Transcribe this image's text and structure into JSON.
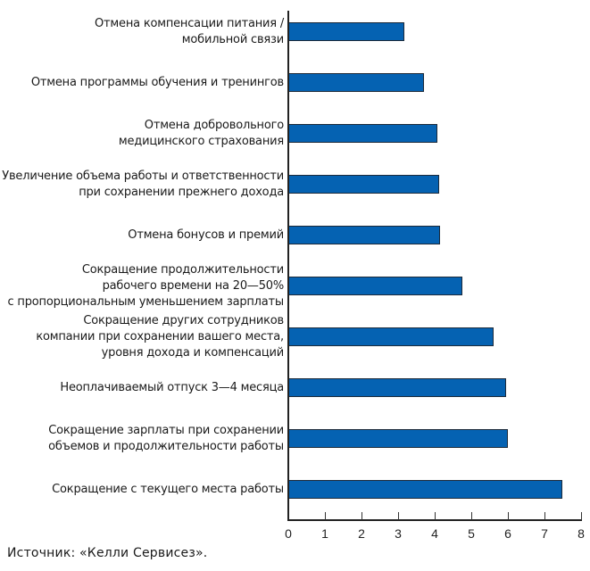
{
  "chart_data": {
    "type": "bar",
    "orientation": "horizontal",
    "title": "",
    "xlabel": "",
    "ylabel": "",
    "xlim": [
      0,
      8
    ],
    "x_ticks": [
      "0",
      "1",
      "2",
      "3",
      "4",
      "5",
      "6",
      "7",
      "8"
    ],
    "grid": false,
    "legend": null,
    "bar_color": "#0562b2",
    "categories": [
      "Отмена компенсации питания / мобильной связи",
      "Отмена программы обучения и тренингов",
      "Отмена добровольного медицинского страхования",
      "Увеличение объема работы и ответственности при сохранении прежнего дохода",
      "Отмена бонусов и премий",
      "Сокращение продолжительности рабочего времени на 20—50% с пропорциональным уменьшением зарплаты",
      "Сокращение других сотрудников компании при сохранении вашего места, уровня дохода и компенсаций",
      "Неоплачиваемый отпуск 3—4 месяца",
      "Сокращение зарплаты при сохранении объемов и продолжительности работы",
      "Сокращение с текущего места работы"
    ],
    "values": [
      3.14,
      3.68,
      4.05,
      4.09,
      4.11,
      4.73,
      5.59,
      5.92,
      5.98,
      7.46
    ],
    "source": "Источник: «Келли Сервисез»."
  },
  "labels": [
    [
      "Отмена компенсации питания /",
      "мобильной связи"
    ],
    [
      "Отмена программы обучения и тренингов"
    ],
    [
      "Отмена добровольного",
      "медицинского страхования"
    ],
    [
      "Увеличение объема работы и ответственности",
      "при сохранении прежнего дохода"
    ],
    [
      "Отмена бонусов и премий"
    ],
    [
      "Сокращение продолжительности",
      "рабочего времени на 20—50%",
      "с пропорциональным уменьшением зарплаты"
    ],
    [
      "Сокращение других сотрудников",
      "компании при сохранении вашего места,",
      "уровня дохода и компенсаций"
    ],
    [
      "Неоплачиваемый отпуск 3—4 месяца"
    ],
    [
      "Сокращение зарплаты при сохранении",
      "объемов и продолжительности работы"
    ],
    [
      "Сокращение с текущего места работы"
    ]
  ],
  "source": "Источник: «Келли Сервисез»."
}
